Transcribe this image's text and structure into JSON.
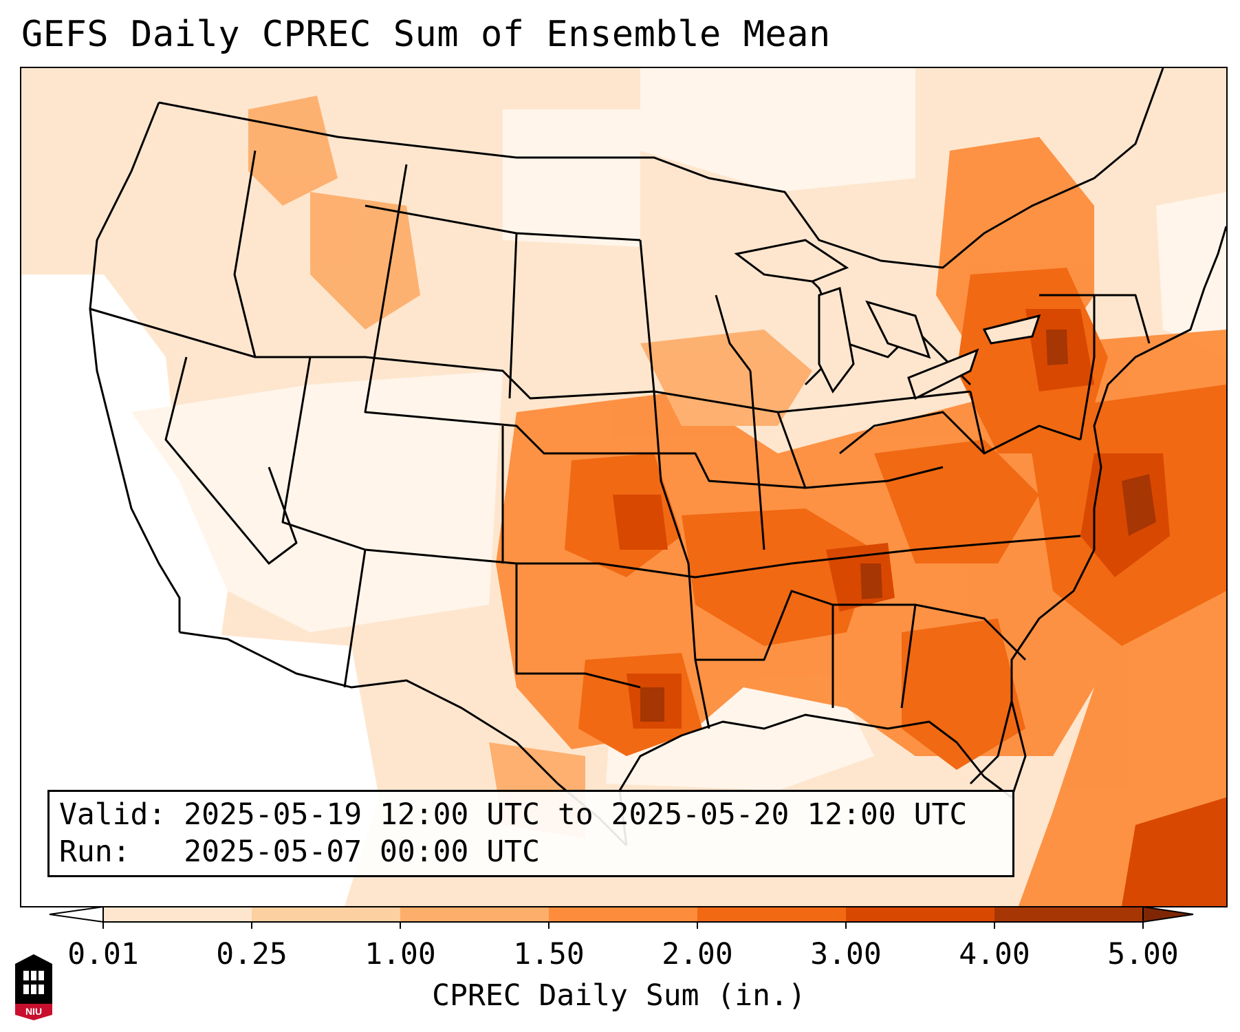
{
  "title": "GEFS Daily CPREC Sum of Ensemble Mean",
  "info": {
    "valid_label": "Valid:",
    "valid_value": "2025-05-19 12:00 UTC to 2025-05-20 12:00 UTC",
    "run_label": "Run:",
    "run_value": "2025-05-07 00:00 UTC"
  },
  "colorbar": {
    "label": "CPREC Daily Sum (in.)",
    "ticks": [
      "0.01",
      "0.25",
      "1.00",
      "1.50",
      "2.00",
      "3.00",
      "4.00",
      "5.00"
    ],
    "colors": [
      "#fff5eb",
      "#fee6ce",
      "#fdd0a2",
      "#fdae6b",
      "#fd8d3c",
      "#f16913",
      "#d94801",
      "#a63603",
      "#7f2704"
    ],
    "under_color": "#ffffff",
    "over_color": "#7f2704"
  },
  "logo": {
    "text": "NIU",
    "accent": "#c8102e"
  }
}
